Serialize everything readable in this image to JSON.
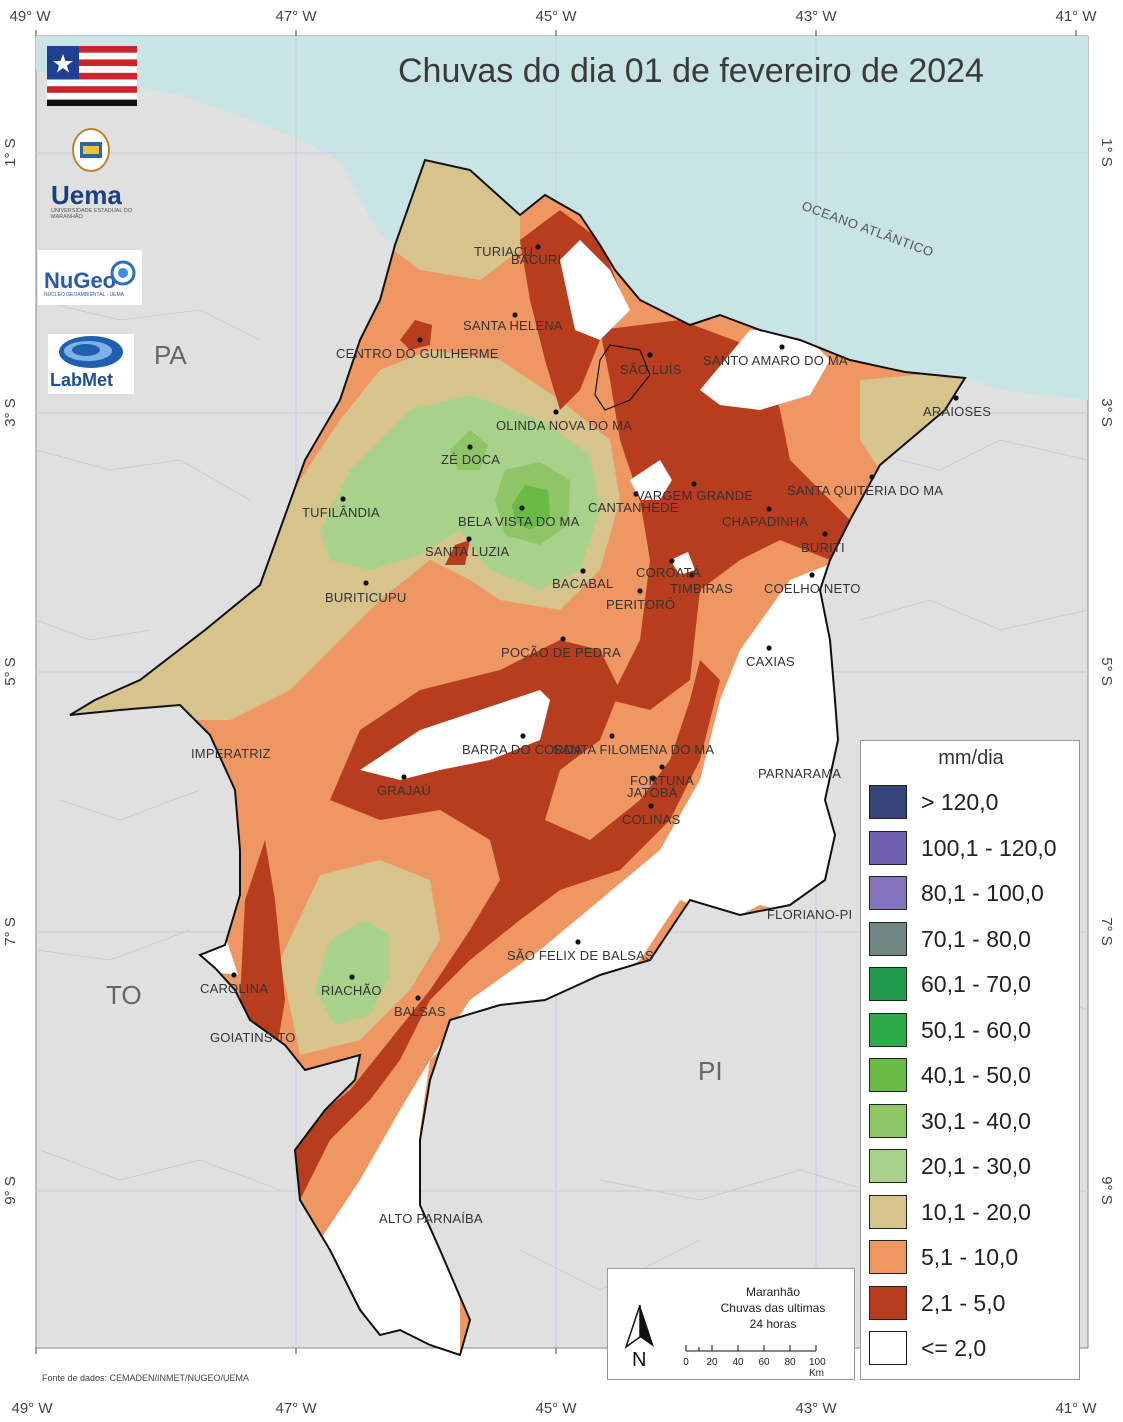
{
  "map": {
    "title": "Chuvas do dia 01 de fevereiro de 2024",
    "ocean_label": "OCEANO ATLÂNTICO",
    "source_note": "Fonte de dados: CEMADEN/INMET/NUGEO/UEMA",
    "lon_ticks": [
      "49° W",
      "47° W",
      "45° W",
      "43° W",
      "41° W"
    ],
    "lat_ticks": [
      "1° S",
      "3° S",
      "5° S",
      "7° S",
      "9° S"
    ],
    "states": {
      "pa": "PA",
      "to": "TO",
      "pi": "PI"
    },
    "cities": {
      "turiacu": "TURIAÇU",
      "bacuri": "BACURI",
      "santa_helena": "SANTA HELENA",
      "centro_guilherme": "CENTRO DO GUILHERME",
      "sao_luis": "SÃO LUÍS",
      "santo_amaro": "SANTO AMARO DO MA",
      "araioses": "ARAIOSES",
      "olinda_nova": "OLINDA NOVA DO MA",
      "ze_doca": "ZÉ DOCA",
      "vargem_grande": "VARGEM GRANDE",
      "cantanhede": "CANTANHEDE",
      "santa_quiteria": "SANTA QUITÉRIA DO MA",
      "chapadinha": "CHAPADINHA",
      "tufilandia": "TUFILÂNDIA",
      "bela_vista": "BELA VISTA DO MA",
      "buriti": "BURITI",
      "santa_luzia": "SANTA LUZIA",
      "coroata": "COROATÁ",
      "timbiras": "TIMBIRAS",
      "bacabal": "BACABAL",
      "coelho_neto": "COELHO NETO",
      "peritoro": "PERITORÓ",
      "buriticupu": "BURITICUPU",
      "pocao_pedra": "POÇÃO DE PEDRA",
      "caxias": "CAXIAS",
      "imperatriz": "IMPERATRIZ",
      "barra_corda": "BARRA DO CORDA",
      "santa_filomena": "SANTA FILOMENA DO MA",
      "parnarama": "PARNARAMA",
      "fortuna": "FORTUNA",
      "grajau": "GRAJAÚ",
      "jatoba": "JATOBÁ",
      "colinas": "COLINAS",
      "floriano": "FLORIANO-PI",
      "sao_felix": "SÃO FELIX DE BALSAS",
      "carolina": "CAROLINA",
      "riachao": "RIACHÃO",
      "balsas": "BALSAS",
      "goiatins": "GOIATINS-TO",
      "alto_parnaiba": "ALTO PARNAÍBA"
    }
  },
  "legend": {
    "title": "mm/dia",
    "items": [
      {
        "label": "> 120,0",
        "color": "#35457a"
      },
      {
        "label": "100,1 - 120,0",
        "color": "#6e60ae"
      },
      {
        "label": "80,1 - 100,0",
        "color": "#8473bd"
      },
      {
        "label": "70,1 - 80,0",
        "color": "#6f8682"
      },
      {
        "label": "60,1 - 70,0",
        "color": "#1f9a4d"
      },
      {
        "label": "50,1 - 60,0",
        "color": "#2eab48"
      },
      {
        "label": "40,1 - 50,0",
        "color": "#69bb46"
      },
      {
        "label": "30,1 - 40,0",
        "color": "#8ec567"
      },
      {
        "label": "20,1 - 30,0",
        "color": "#a8d18b"
      },
      {
        "label": "10,1 - 20,0",
        "color": "#d6c48c"
      },
      {
        "label": "5,1 - 10,0",
        "color": "#ee9762"
      },
      {
        "label": "2,1 - 5,0",
        "color": "#b83d1e"
      },
      {
        "label": "<= 2,0",
        "color": "#ffffff"
      }
    ]
  },
  "info_box": {
    "line1": "Maranhão",
    "line2": "Chuvas das ultimas",
    "line3": "24 horas",
    "north": "N",
    "scale_labels": [
      "0",
      "20",
      "40",
      "60",
      "80",
      "100 Km"
    ]
  },
  "logos": {
    "uema_name": "Uema",
    "uema_sub": "UNIVERSIDADE ESTADUAL DO MARANHÃO",
    "nugeo_name": "NuGeo",
    "nugeo_sub": "NÚCLEO GEOAMBIENTAL - UEMA",
    "labmet_name": "LabMet"
  }
}
